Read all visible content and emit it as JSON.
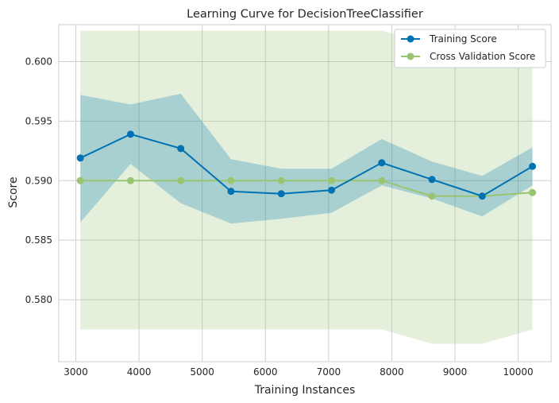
{
  "chart_data": {
    "type": "line",
    "title": "Learning Curve for DecisionTreeClassifier",
    "xlabel": "Training Instances",
    "ylabel": "Score",
    "xlim": [
      2730,
      10520
    ],
    "ylim": [
      0.5748,
      0.6031
    ],
    "xticks": [
      3000,
      4000,
      5000,
      6000,
      7000,
      8000,
      9000,
      10000
    ],
    "xtick_labels": [
      "3000",
      "4000",
      "5000",
      "6000",
      "7000",
      "8000",
      "9000",
      "10000"
    ],
    "yticks": [
      0.58,
      0.585,
      0.59,
      0.595,
      0.6
    ],
    "ytick_labels": [
      "0.580",
      "0.585",
      "0.590",
      "0.595",
      "0.600"
    ],
    "grid": true,
    "legend_position": "top-right",
    "x": [
      3071,
      3866,
      4661,
      5456,
      6251,
      7046,
      7841,
      8636,
      9431,
      10226
    ],
    "series": [
      {
        "name": "Training Score",
        "color": "#0072b2",
        "values": [
          0.5919,
          0.5939,
          0.5927,
          0.5891,
          0.5889,
          0.5892,
          0.5915,
          0.5901,
          0.5887,
          0.5912
        ],
        "band_upper": [
          0.5972,
          0.5964,
          0.5973,
          0.5918,
          0.591,
          0.591,
          0.5935,
          0.5916,
          0.5904,
          0.5928
        ],
        "band_lower": [
          0.5865,
          0.5914,
          0.5881,
          0.5864,
          0.5868,
          0.5873,
          0.5896,
          0.5885,
          0.587,
          0.5896
        ]
      },
      {
        "name": "Cross Validation Score",
        "color": "#99c573",
        "values": [
          0.59,
          0.59,
          0.59,
          0.59,
          0.59,
          0.59,
          0.59,
          0.5887,
          0.5887,
          0.589
        ],
        "band_upper": [
          0.6026,
          0.6026,
          0.6026,
          0.6026,
          0.6026,
          0.6026,
          0.6026,
          0.6014,
          0.6014,
          0.6008
        ],
        "band_lower": [
          0.5775,
          0.5775,
          0.5775,
          0.5775,
          0.5775,
          0.5775,
          0.5775,
          0.5763,
          0.5763,
          0.5775
        ]
      }
    ]
  }
}
